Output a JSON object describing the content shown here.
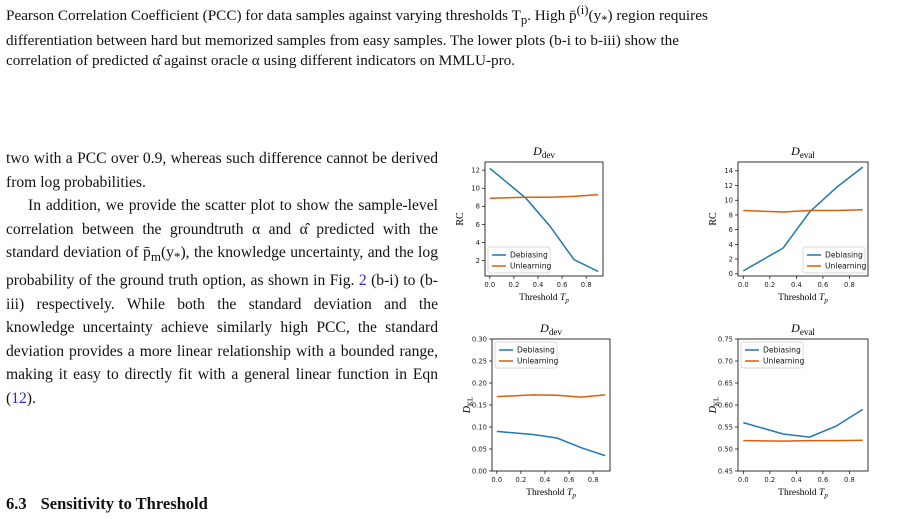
{
  "caption": {
    "line1": "Pearson Correlation Coefficient (PCC) for data samples against varying thresholds T",
    "line1_sub": "p",
    "line1_rest": ". High p̄",
    "line1_sup": "(i)",
    "line1_end": "(y",
    "line1_end_sub": "*",
    "line1_tail": ") region requires",
    "line2": "differentiation between hard but memorized samples from easy samples. The lower plots (b-i to b-iii) show the",
    "line3": "correlation of predicted α̂ against oracle α using different indicators on MMLU-pro."
  },
  "body": {
    "p1": "two with a PCC over 0.9, whereas such difference cannot be derived from log probabilities.",
    "p2_a": "In addition, we provide the scatter plot to show the sample-level correlation between the groundtruth α and α̂ predicted with the standard deviation of p̄",
    "p2_a_sub": "m",
    "p2_b": "(y",
    "p2_b_sub": "*",
    "p2_c": "), the knowledge uncertainty, and the log probability of the ground truth option, as shown in Fig. ",
    "p2_ref1": "2",
    "p2_d": " (b-i) to (b-iii) respectively. While both the standard deviation and the knowledge uncertainty achieve similarly high PCC, the standard deviation provides a more linear relationship with a bounded range, making it easy to directly fit with a general linear function in Eqn (",
    "p2_ref2": "12",
    "p2_e": ")."
  },
  "section": {
    "number": "6.3",
    "title": "Sensitivity to Threshold"
  },
  "colors": {
    "debiasing": "#1f77b4",
    "unlearning": "#d95f0e",
    "link": "#2b2bd6"
  },
  "chart_data": [
    {
      "type": "line",
      "title": "D_dev",
      "title_main": "D",
      "title_sub": "dev",
      "xlabel": "Threshold T_p",
      "ylabel": "RC",
      "xlim": [
        -0.04,
        0.94
      ],
      "ylim": [
        0.3,
        12.9
      ],
      "xticks": [
        "0.0",
        "0.2",
        "0.4",
        "0.6",
        "0.8"
      ],
      "yticks": [
        "2",
        "4",
        "6",
        "8",
        "10",
        "12"
      ],
      "legend": "lower-left",
      "x": [
        0.0,
        0.3,
        0.5,
        0.7,
        0.9
      ],
      "series": [
        {
          "name": "Debiasing",
          "values": [
            12.2,
            8.9,
            5.8,
            2.1,
            0.8
          ]
        },
        {
          "name": "Unlearning",
          "values": [
            8.9,
            9.0,
            9.0,
            9.1,
            9.3
          ]
        }
      ]
    },
    {
      "type": "line",
      "title": "D_eval",
      "title_main": "D",
      "title_sub": "eval",
      "xlabel": "Threshold T_p",
      "ylabel": "RC",
      "xlim": [
        -0.04,
        0.94
      ],
      "ylim": [
        -0.3,
        15.2
      ],
      "xticks": [
        "0.0",
        "0.2",
        "0.4",
        "0.6",
        "0.8"
      ],
      "yticks": [
        "0",
        "2",
        "4",
        "6",
        "8",
        "10",
        "12",
        "14"
      ],
      "legend": "lower-right",
      "x": [
        0.0,
        0.3,
        0.5,
        0.7,
        0.9
      ],
      "series": [
        {
          "name": "Debiasing",
          "values": [
            0.4,
            3.5,
            8.4,
            11.7,
            14.5
          ]
        },
        {
          "name": "Unlearning",
          "values": [
            8.6,
            8.4,
            8.6,
            8.6,
            8.7
          ]
        }
      ]
    },
    {
      "type": "line",
      "title": "D_dev",
      "title_main": "D",
      "title_sub": "dev",
      "xlabel": "Threshold T_p",
      "ylabel": "D_KL",
      "xlim": [
        -0.04,
        0.94
      ],
      "ylim": [
        0.0,
        0.3
      ],
      "xticks": [
        "0.0",
        "0.2",
        "0.4",
        "0.6",
        "0.8"
      ],
      "yticks": [
        "0.00",
        "0.05",
        "0.10",
        "0.15",
        "0.20",
        "0.25",
        "0.30"
      ],
      "legend": "upper-left",
      "x": [
        0.0,
        0.3,
        0.5,
        0.7,
        0.9
      ],
      "series": [
        {
          "name": "Debiasing",
          "values": [
            0.09,
            0.083,
            0.075,
            0.053,
            0.035
          ]
        },
        {
          "name": "Unlearning",
          "values": [
            0.169,
            0.173,
            0.172,
            0.168,
            0.173
          ]
        }
      ]
    },
    {
      "type": "line",
      "title": "D_eval",
      "title_main": "D",
      "title_sub": "eval",
      "xlabel": "Threshold T_p",
      "ylabel": "D_KL",
      "xlim": [
        -0.04,
        0.94
      ],
      "ylim": [
        0.45,
        0.75
      ],
      "xticks": [
        "0.0",
        "0.2",
        "0.4",
        "0.6",
        "0.8"
      ],
      "yticks": [
        "0.45",
        "0.50",
        "0.55",
        "0.60",
        "0.65",
        "0.70",
        "0.75"
      ],
      "legend": "upper-left",
      "x": [
        0.0,
        0.3,
        0.5,
        0.7,
        0.9
      ],
      "series": [
        {
          "name": "Debiasing",
          "values": [
            0.56,
            0.534,
            0.527,
            0.552,
            0.59
          ]
        },
        {
          "name": "Unlearning",
          "values": [
            0.519,
            0.518,
            0.519,
            0.519,
            0.52
          ]
        }
      ]
    }
  ]
}
